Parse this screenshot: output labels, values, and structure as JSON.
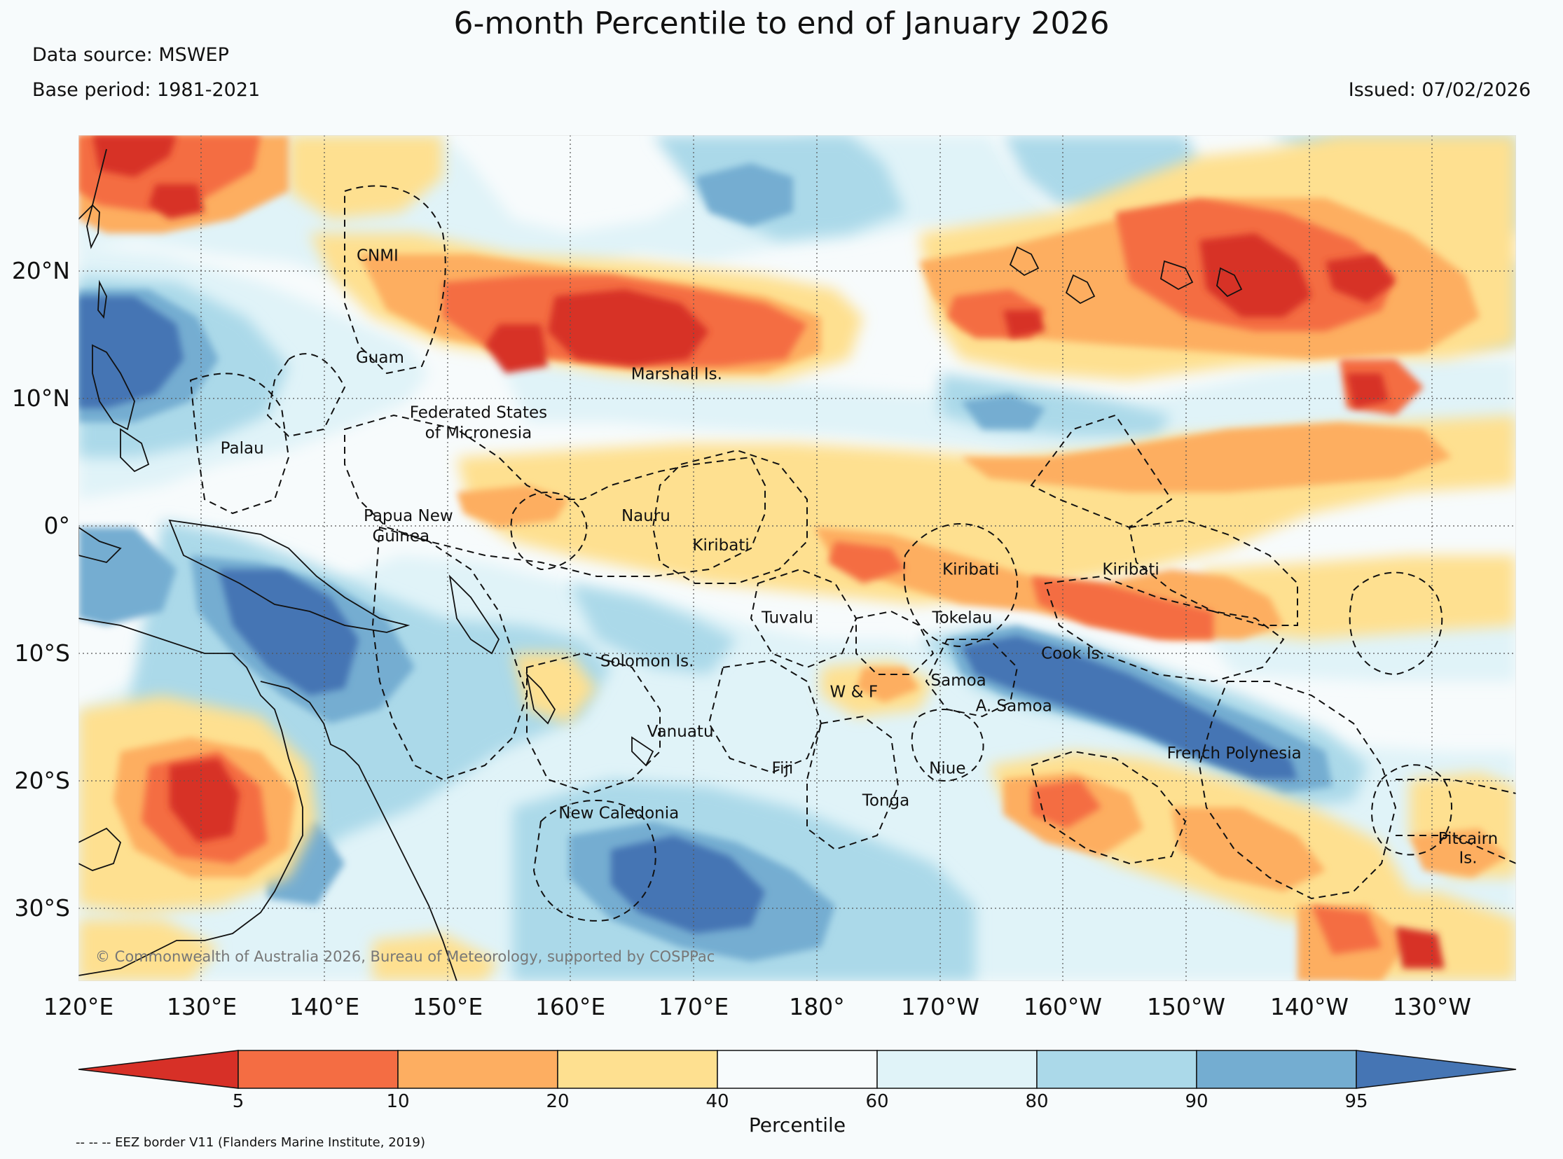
{
  "header": {
    "title": "6-month Percentile to end of January 2026",
    "data_source": "Data source: MSWEP",
    "base_period": "Base period: 1981-2021",
    "issued": "Issued: 07/02/2026"
  },
  "map": {
    "copyright": "© Commonwealth of Australia 2026, Bureau of Meteorology, supported by COSPPac",
    "lat_labels": [
      "20°N",
      "10°N",
      "0°",
      "10°S",
      "20°S",
      "30°S"
    ],
    "lon_labels": [
      "120°E",
      "130°E",
      "140°E",
      "150°E",
      "160°E",
      "170°E",
      "180°",
      "170°W",
      "160°W",
      "150°W",
      "140°W",
      "130°W"
    ],
    "regions": [
      {
        "label": "CNMI",
        "lon": 144.3,
        "lat": 20.4
      },
      {
        "label": "Guam",
        "lon": 144.5,
        "lat": 12.4
      },
      {
        "label": "Federated States",
        "lon": 152.5,
        "lat": 8.1
      },
      {
        "label": "of Micronesia",
        "lon": 152.5,
        "lat": 6.5
      },
      {
        "label": "Palau",
        "lon": 133.3,
        "lat": 5.3
      },
      {
        "label": "Marshall Is.",
        "lon": 168.6,
        "lat": 11.1
      },
      {
        "label": "Papua New",
        "lon": 146.8,
        "lat": 0.0
      },
      {
        "label": "Guinea",
        "lon": 146.2,
        "lat": -1.6
      },
      {
        "label": "Nauru",
        "lon": 166.1,
        "lat": 0.0
      },
      {
        "label": "Kiribati",
        "lon": 172.2,
        "lat": -2.3
      },
      {
        "label": "Kiribati",
        "lon": -167.5,
        "lat": -4.2
      },
      {
        "label": "Kiribati",
        "lon": -154.5,
        "lat": -4.2
      },
      {
        "label": "Tuvalu",
        "lon": 177.6,
        "lat": -8.0
      },
      {
        "label": "Tokelau",
        "lon": -168.2,
        "lat": -8.0
      },
      {
        "label": "Cook Is.",
        "lon": -159.2,
        "lat": -10.8
      },
      {
        "label": "Solomon Is.",
        "lon": 166.2,
        "lat": -11.4
      },
      {
        "label": "Samoa",
        "lon": -168.5,
        "lat": -12.9
      },
      {
        "label": "W & F",
        "lon": -177.0,
        "lat": -13.8
      },
      {
        "label": "A. Samoa",
        "lon": -164.0,
        "lat": -14.9
      },
      {
        "label": "Vanuatu",
        "lon": 168.9,
        "lat": -16.9
      },
      {
        "label": "French Polynesia",
        "lon": -146.1,
        "lat": -18.6
      },
      {
        "label": "Fiji",
        "lon": 177.2,
        "lat": -19.8
      },
      {
        "label": "Niue",
        "lon": -169.4,
        "lat": -19.8
      },
      {
        "label": "Tonga",
        "lon": -174.4,
        "lat": -22.3
      },
      {
        "label": "New Caledonia",
        "lon": 163.9,
        "lat": -23.3
      },
      {
        "label": "Pitcairn",
        "lon": -127.1,
        "lat": -25.3
      },
      {
        "label": "Is.",
        "lon": -127.1,
        "lat": -26.8
      }
    ]
  },
  "colorbar": {
    "label": "Percentile",
    "ticks": [
      "5",
      "10",
      "20",
      "40",
      "60",
      "80",
      "90",
      "95"
    ],
    "colors": [
      "#d73027",
      "#f46d43",
      "#fdae61",
      "#fee090",
      "#f7fbfc",
      "#e0f3f8",
      "#abd9e9",
      "#74add1",
      "#4575b4"
    ]
  },
  "footnote": "-- -- -- EEZ border V11 (Flanders Marine Institute, 2019)"
}
